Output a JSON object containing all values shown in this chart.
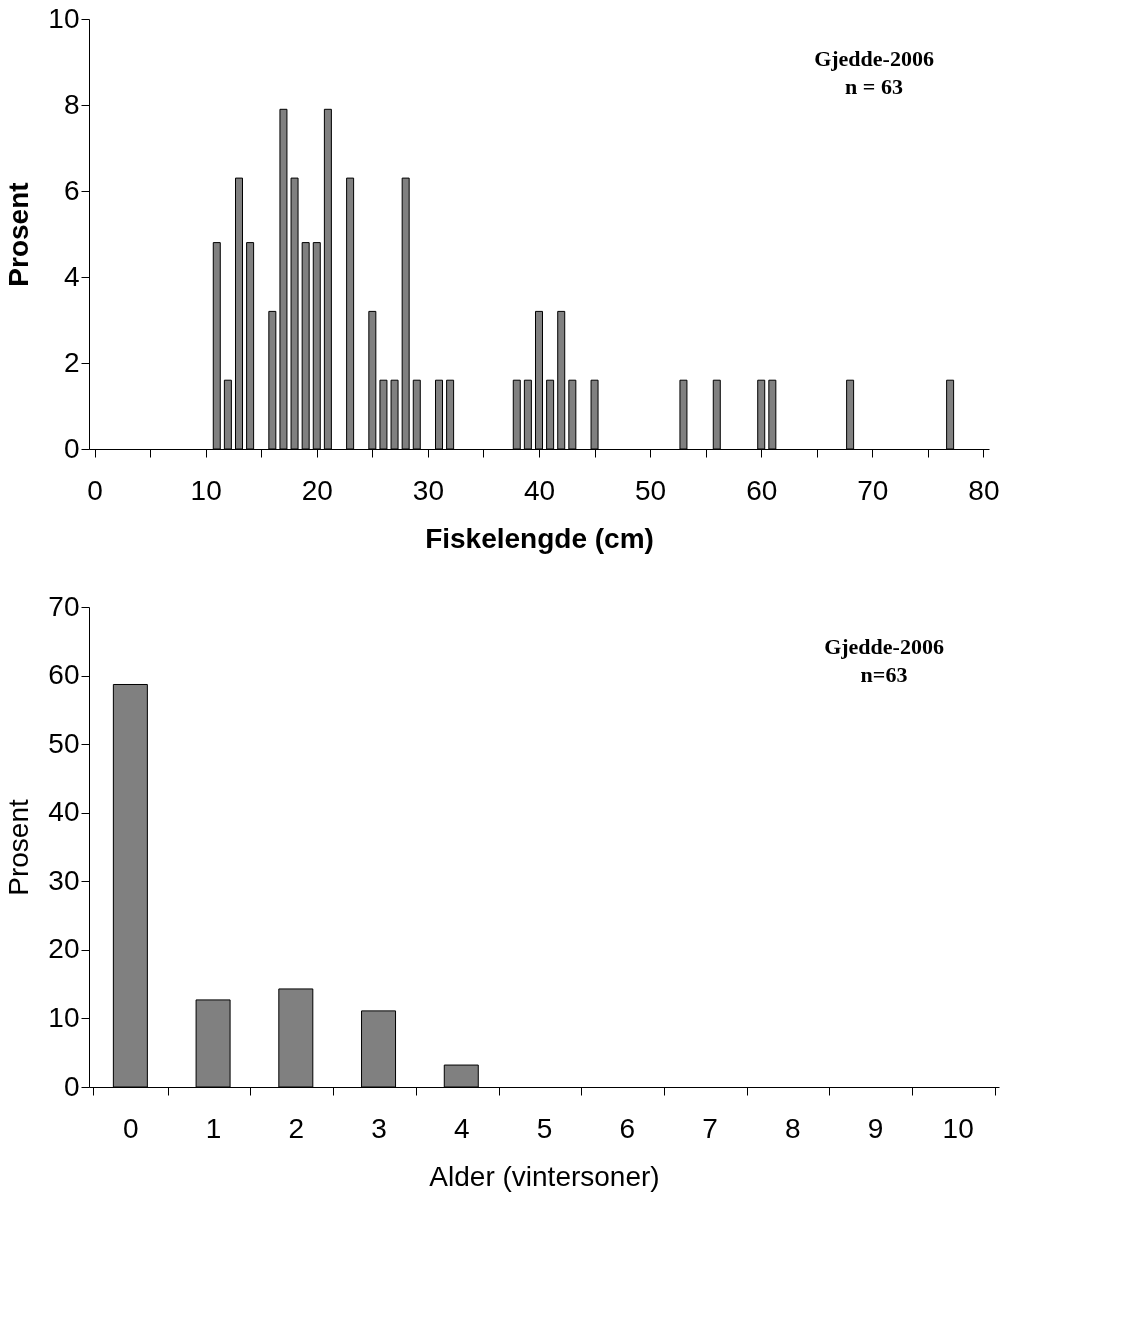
{
  "chart_data": [
    {
      "type": "bar",
      "xlabel": "Fiskelengde (cm)",
      "ylabel": "Prosent",
      "annotations": [
        "Gjedde-2006",
        "n = 63"
      ],
      "x": [
        11,
        12,
        13,
        14,
        16,
        17,
        18,
        19,
        20,
        21,
        23,
        25,
        26,
        27,
        28,
        29,
        31,
        32,
        38,
        39,
        40,
        41,
        42,
        43,
        45,
        53,
        56,
        60,
        61,
        68,
        77
      ],
      "values": [
        4.8,
        1.6,
        6.3,
        4.8,
        3.2,
        7.9,
        6.3,
        4.8,
        4.8,
        7.9,
        6.3,
        3.2,
        1.6,
        1.6,
        6.3,
        1.6,
        1.6,
        1.6,
        1.6,
        1.6,
        3.2,
        1.6,
        3.2,
        1.6,
        1.6,
        1.6,
        1.6,
        1.6,
        1.6,
        1.6,
        1.6
      ],
      "color": "#808080",
      "xlim": [
        -0.5,
        80.5
      ],
      "xticks": [
        0,
        {
          "value": 5,
          "label": null
        },
        10,
        {
          "value": 15,
          "label": null
        },
        20,
        {
          "value": 25,
          "label": null
        },
        30,
        {
          "value": 35,
          "label": null
        },
        40,
        {
          "value": 45,
          "label": null
        },
        50,
        {
          "value": 55,
          "label": null
        },
        60,
        {
          "value": 65,
          "label": null
        },
        70,
        {
          "value": 75,
          "label": null
        },
        80
      ],
      "ylim": [
        0,
        10
      ],
      "yticks": [
        0,
        2,
        4,
        6,
        8,
        10
      ],
      "grid": false
    },
    {
      "type": "bar",
      "xlabel": "Alder (vintersoner)",
      "ylabel": "Prosent",
      "annotations": [
        "Gjedde-2006",
        "n=63"
      ],
      "categories": [
        "0",
        "1",
        "2",
        "3",
        "4",
        "5",
        "6",
        "7",
        "8",
        "9",
        "10"
      ],
      "values": [
        58.7,
        12.7,
        14.3,
        11.1,
        3.2,
        0,
        0,
        0,
        0,
        0,
        0
      ],
      "color": "#808080",
      "ylim": [
        0,
        70
      ],
      "yticks": [
        0,
        10,
        20,
        30,
        40,
        50,
        60,
        70
      ],
      "grid": false
    }
  ]
}
